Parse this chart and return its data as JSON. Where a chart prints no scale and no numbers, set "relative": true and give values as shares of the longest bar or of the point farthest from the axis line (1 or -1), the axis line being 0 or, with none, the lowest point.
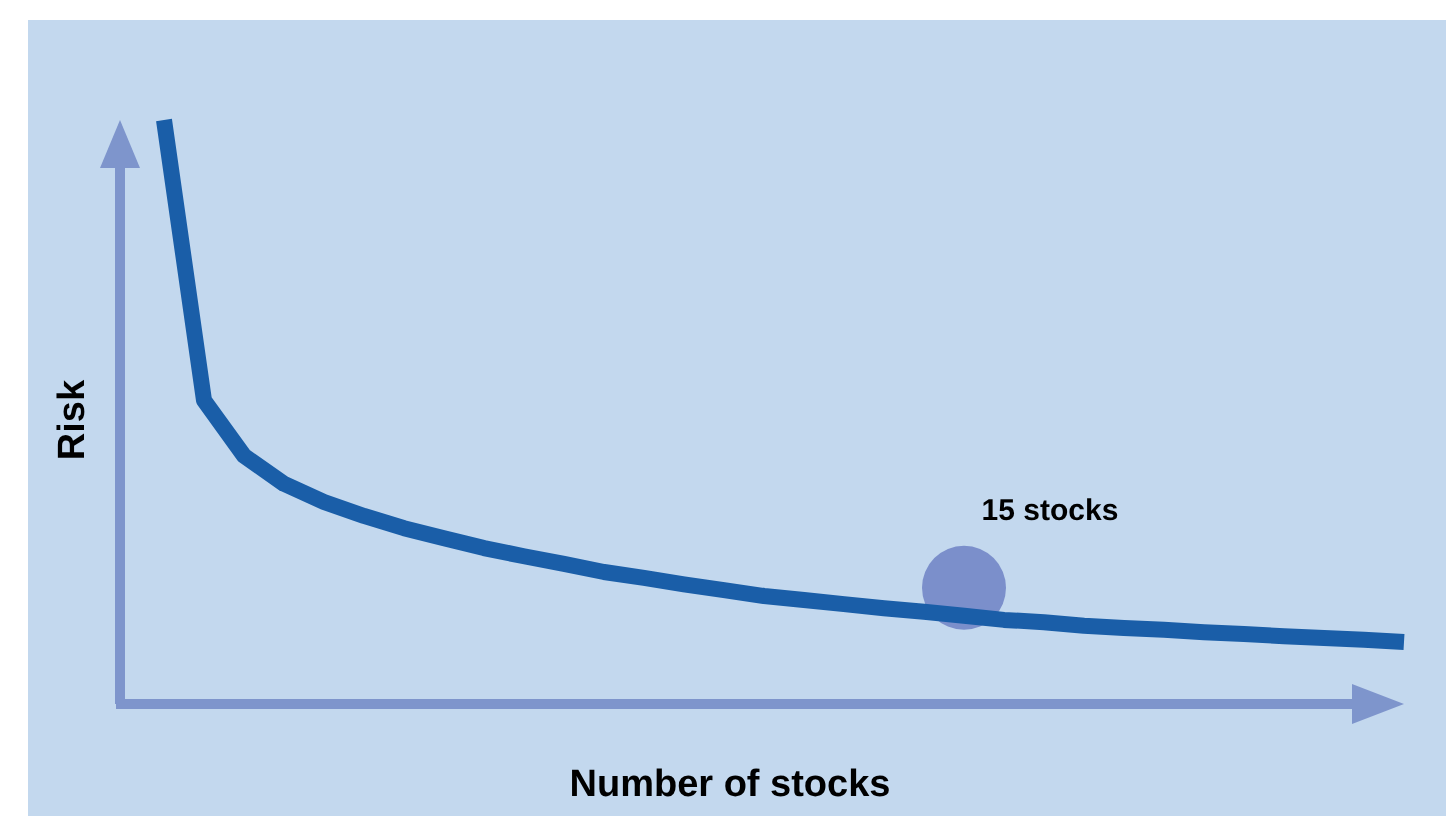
{
  "chart_data": {
    "type": "line",
    "relative": true,
    "xlabel": "Number of stocks",
    "ylabel": "Risk",
    "annotations": [
      {
        "text": "15 stocks",
        "y": 0.151
      }
    ],
    "categories": [
      null,
      null,
      null,
      null,
      null,
      null,
      null,
      null,
      null,
      null,
      null,
      null,
      null,
      null,
      null,
      null,
      null,
      null,
      null,
      null,
      null,
      null,
      null,
      null,
      null,
      null,
      null,
      null,
      null,
      null,
      null,
      null
    ],
    "series": [
      {
        "color": "#1a5ea8",
        "values": [
          1.0,
          0.52,
          0.425,
          0.377,
          0.346,
          0.322,
          0.301,
          0.284,
          0.267,
          0.253,
          0.24,
          0.226,
          0.216,
          0.205,
          0.195,
          0.185,
          0.178,
          0.171,
          0.164,
          0.158,
          0.151,
          0.144,
          0.14,
          0.134,
          0.13,
          0.127,
          0.123,
          0.12,
          0.116,
          0.113,
          0.11,
          0.106
        ]
      }
    ]
  }
}
